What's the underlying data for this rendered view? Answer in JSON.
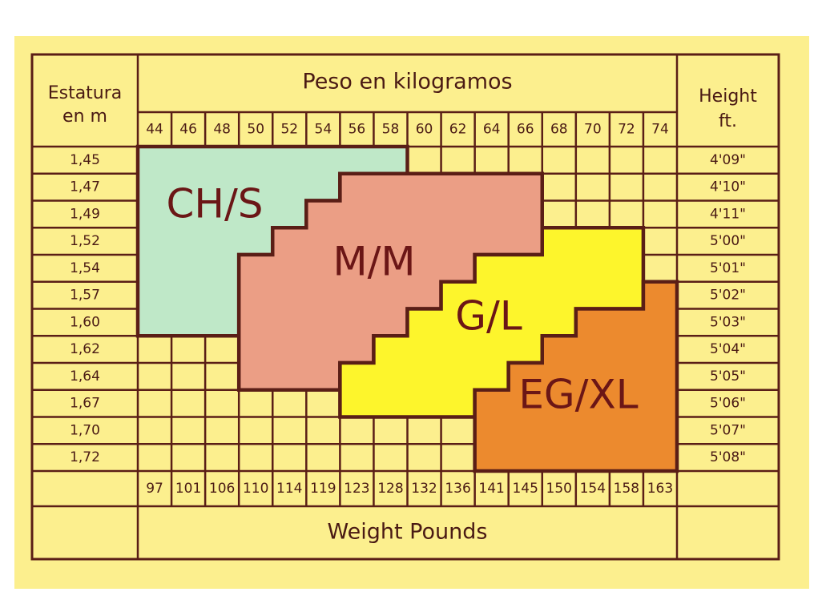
{
  "header": {
    "left": [
      "Estatura",
      "en m"
    ],
    "title": "Peso en kilogramos",
    "right": [
      "Height",
      "ft."
    ]
  },
  "kg": [
    44,
    46,
    48,
    50,
    52,
    54,
    56,
    58,
    60,
    62,
    64,
    66,
    68,
    70,
    72,
    74
  ],
  "heights_m": [
    "1,45",
    "1,47",
    "1,49",
    "1,52",
    "1,54",
    "1,57",
    "1,60",
    "1,62",
    "1,64",
    "1,67",
    "1,70",
    "1,72"
  ],
  "heights_ft": [
    "4'09\"",
    "4'10\"",
    "4'11\"",
    "5'00\"",
    "5'01\"",
    "5'02\"",
    "5'03\"",
    "5'04\"",
    "5'05\"",
    "5'06\"",
    "5'07\"",
    "5'08\""
  ],
  "pounds": [
    97,
    101,
    106,
    110,
    114,
    119,
    123,
    128,
    132,
    136,
    141,
    145,
    150,
    154,
    158,
    163
  ],
  "footer": "Weight Pounds",
  "sizes": [
    "CH/S",
    "M/M",
    "G/L",
    "EG/XL"
  ]
}
